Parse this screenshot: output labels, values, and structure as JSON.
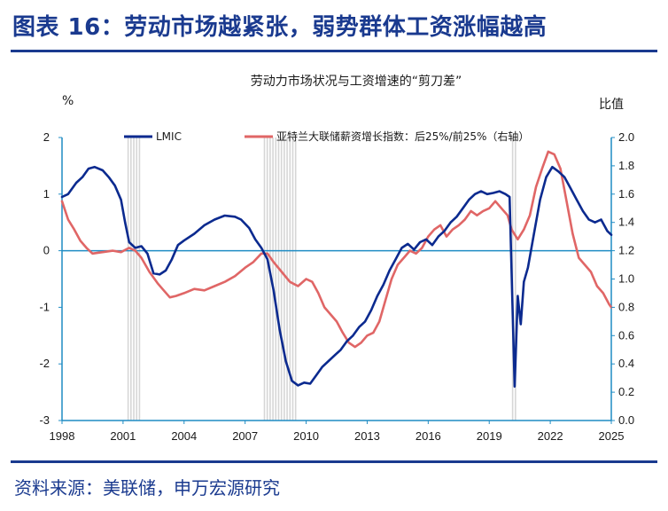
{
  "header": {
    "title": "图表 16：劳动市场越紧张，弱势群体工资涨幅越高"
  },
  "footer": {
    "source": "资料来源：美联储，申万宏源研究"
  },
  "chart_data": {
    "type": "line",
    "title": "劳动力市场状况与工资增速的“剪刀差”",
    "ylabel_left": "%",
    "ylabel_right": "比值",
    "x_range": [
      1998.0,
      2025.0
    ],
    "ylim_left": [
      -3,
      2
    ],
    "ylim_right": [
      0.0,
      2.0
    ],
    "x_ticks": [
      "1998",
      "2001",
      "2004",
      "2007",
      "2010",
      "2013",
      "2016",
      "2019",
      "2022",
      "2025"
    ],
    "y_ticks_left": [
      "2",
      "1",
      "0",
      "-1",
      "-2",
      "-3"
    ],
    "y_ticks_right": [
      "2.0",
      "1.8",
      "1.6",
      "1.4",
      "1.2",
      "1.0",
      "0.8",
      "0.6",
      "0.4",
      "0.2",
      "0.0"
    ],
    "recession_shading": [
      [
        2001.25,
        2001.9
      ],
      [
        2007.95,
        2009.5
      ],
      [
        2020.15,
        2020.35
      ]
    ],
    "zero_line": true,
    "legend_position": "top",
    "colors": {
      "LMIC": "#0b2a8f",
      "wage_ratio": "#e06666",
      "axis": "#1f8cc4",
      "shading": "#d6d6d6"
    },
    "series": [
      {
        "name": "LMIC",
        "axis": "left",
        "points": [
          [
            1998.0,
            0.95
          ],
          [
            1998.3,
            1.0
          ],
          [
            1998.7,
            1.2
          ],
          [
            1999.0,
            1.3
          ],
          [
            1999.3,
            1.45
          ],
          [
            1999.6,
            1.48
          ],
          [
            2000.0,
            1.42
          ],
          [
            2000.3,
            1.3
          ],
          [
            2000.6,
            1.15
          ],
          [
            2000.9,
            0.9
          ],
          [
            2001.1,
            0.5
          ],
          [
            2001.3,
            0.15
          ],
          [
            2001.6,
            0.05
          ],
          [
            2001.9,
            0.08
          ],
          [
            2002.2,
            -0.05
          ],
          [
            2002.5,
            -0.4
          ],
          [
            2002.8,
            -0.42
          ],
          [
            2003.1,
            -0.35
          ],
          [
            2003.4,
            -0.15
          ],
          [
            2003.7,
            0.1
          ],
          [
            2004.0,
            0.18
          ],
          [
            2004.5,
            0.3
          ],
          [
            2005.0,
            0.45
          ],
          [
            2005.5,
            0.55
          ],
          [
            2006.0,
            0.62
          ],
          [
            2006.5,
            0.6
          ],
          [
            2006.8,
            0.55
          ],
          [
            2007.2,
            0.4
          ],
          [
            2007.5,
            0.2
          ],
          [
            2007.8,
            0.05
          ],
          [
            2008.1,
            -0.15
          ],
          [
            2008.4,
            -0.7
          ],
          [
            2008.7,
            -1.4
          ],
          [
            2009.0,
            -1.95
          ],
          [
            2009.3,
            -2.3
          ],
          [
            2009.6,
            -2.38
          ],
          [
            2009.9,
            -2.33
          ],
          [
            2010.2,
            -2.35
          ],
          [
            2010.5,
            -2.2
          ],
          [
            2010.8,
            -2.05
          ],
          [
            2011.1,
            -1.95
          ],
          [
            2011.4,
            -1.85
          ],
          [
            2011.7,
            -1.75
          ],
          [
            2012.0,
            -1.6
          ],
          [
            2012.3,
            -1.5
          ],
          [
            2012.6,
            -1.35
          ],
          [
            2012.9,
            -1.25
          ],
          [
            2013.2,
            -1.05
          ],
          [
            2013.5,
            -0.8
          ],
          [
            2013.8,
            -0.6
          ],
          [
            2014.1,
            -0.35
          ],
          [
            2014.4,
            -0.15
          ],
          [
            2014.7,
            0.05
          ],
          [
            2015.0,
            0.12
          ],
          [
            2015.3,
            0.02
          ],
          [
            2015.6,
            0.15
          ],
          [
            2015.9,
            0.2
          ],
          [
            2016.2,
            0.1
          ],
          [
            2016.5,
            0.25
          ],
          [
            2016.8,
            0.35
          ],
          [
            2017.1,
            0.5
          ],
          [
            2017.4,
            0.6
          ],
          [
            2017.7,
            0.75
          ],
          [
            2018.0,
            0.9
          ],
          [
            2018.3,
            1.0
          ],
          [
            2018.6,
            1.05
          ],
          [
            2018.9,
            1.0
          ],
          [
            2019.2,
            1.02
          ],
          [
            2019.5,
            1.05
          ],
          [
            2019.8,
            1.0
          ],
          [
            2020.0,
            0.95
          ],
          [
            2020.25,
            -2.4
          ],
          [
            2020.4,
            -0.8
          ],
          [
            2020.55,
            -1.3
          ],
          [
            2020.7,
            -0.55
          ],
          [
            2020.9,
            -0.3
          ],
          [
            2021.2,
            0.3
          ],
          [
            2021.5,
            0.9
          ],
          [
            2021.8,
            1.3
          ],
          [
            2022.1,
            1.48
          ],
          [
            2022.4,
            1.4
          ],
          [
            2022.7,
            1.3
          ],
          [
            2023.0,
            1.1
          ],
          [
            2023.3,
            0.9
          ],
          [
            2023.6,
            0.7
          ],
          [
            2023.9,
            0.55
          ],
          [
            2024.2,
            0.5
          ],
          [
            2024.5,
            0.55
          ],
          [
            2024.8,
            0.35
          ],
          [
            2025.0,
            0.28
          ]
        ]
      },
      {
        "name": "亚特兰大联储薪资增长指数：后25%/前25%（右轴）",
        "axis": "right",
        "points": [
          [
            1998.0,
            1.55
          ],
          [
            1998.3,
            1.42
          ],
          [
            1998.6,
            1.35
          ],
          [
            1998.9,
            1.27
          ],
          [
            1999.2,
            1.22
          ],
          [
            1999.5,
            1.18
          ],
          [
            2000.0,
            1.19
          ],
          [
            2000.5,
            1.2
          ],
          [
            2000.9,
            1.19
          ],
          [
            2001.3,
            1.22
          ],
          [
            2001.6,
            1.2
          ],
          [
            2001.9,
            1.15
          ],
          [
            2002.3,
            1.05
          ],
          [
            2002.7,
            0.97
          ],
          [
            2003.0,
            0.92
          ],
          [
            2003.3,
            0.87
          ],
          [
            2003.6,
            0.88
          ],
          [
            2004.0,
            0.9
          ],
          [
            2004.5,
            0.93
          ],
          [
            2005.0,
            0.92
          ],
          [
            2005.5,
            0.95
          ],
          [
            2006.0,
            0.98
          ],
          [
            2006.5,
            1.02
          ],
          [
            2007.0,
            1.08
          ],
          [
            2007.4,
            1.12
          ],
          [
            2007.8,
            1.18
          ],
          [
            2008.1,
            1.18
          ],
          [
            2008.4,
            1.12
          ],
          [
            2008.8,
            1.05
          ],
          [
            2009.2,
            0.98
          ],
          [
            2009.6,
            0.95
          ],
          [
            2010.0,
            1.0
          ],
          [
            2010.3,
            0.98
          ],
          [
            2010.6,
            0.9
          ],
          [
            2010.9,
            0.8
          ],
          [
            2011.2,
            0.75
          ],
          [
            2011.5,
            0.7
          ],
          [
            2011.8,
            0.62
          ],
          [
            2012.1,
            0.55
          ],
          [
            2012.4,
            0.52
          ],
          [
            2012.7,
            0.55
          ],
          [
            2013.0,
            0.6
          ],
          [
            2013.3,
            0.62
          ],
          [
            2013.6,
            0.7
          ],
          [
            2013.9,
            0.85
          ],
          [
            2014.2,
            1.0
          ],
          [
            2014.5,
            1.1
          ],
          [
            2014.8,
            1.15
          ],
          [
            2015.1,
            1.2
          ],
          [
            2015.4,
            1.18
          ],
          [
            2015.7,
            1.22
          ],
          [
            2016.0,
            1.3
          ],
          [
            2016.3,
            1.35
          ],
          [
            2016.6,
            1.38
          ],
          [
            2016.9,
            1.3
          ],
          [
            2017.2,
            1.35
          ],
          [
            2017.5,
            1.38
          ],
          [
            2017.8,
            1.42
          ],
          [
            2018.1,
            1.48
          ],
          [
            2018.4,
            1.45
          ],
          [
            2018.7,
            1.48
          ],
          [
            2019.0,
            1.5
          ],
          [
            2019.3,
            1.55
          ],
          [
            2019.6,
            1.5
          ],
          [
            2019.9,
            1.45
          ],
          [
            2020.1,
            1.35
          ],
          [
            2020.4,
            1.28
          ],
          [
            2020.7,
            1.35
          ],
          [
            2021.0,
            1.45
          ],
          [
            2021.3,
            1.65
          ],
          [
            2021.6,
            1.78
          ],
          [
            2021.9,
            1.9
          ],
          [
            2022.2,
            1.88
          ],
          [
            2022.5,
            1.78
          ],
          [
            2022.8,
            1.55
          ],
          [
            2023.1,
            1.32
          ],
          [
            2023.4,
            1.15
          ],
          [
            2023.7,
            1.1
          ],
          [
            2024.0,
            1.05
          ],
          [
            2024.3,
            0.95
          ],
          [
            2024.6,
            0.9
          ],
          [
            2024.9,
            0.82
          ],
          [
            2025.0,
            0.8
          ]
        ]
      }
    ]
  }
}
